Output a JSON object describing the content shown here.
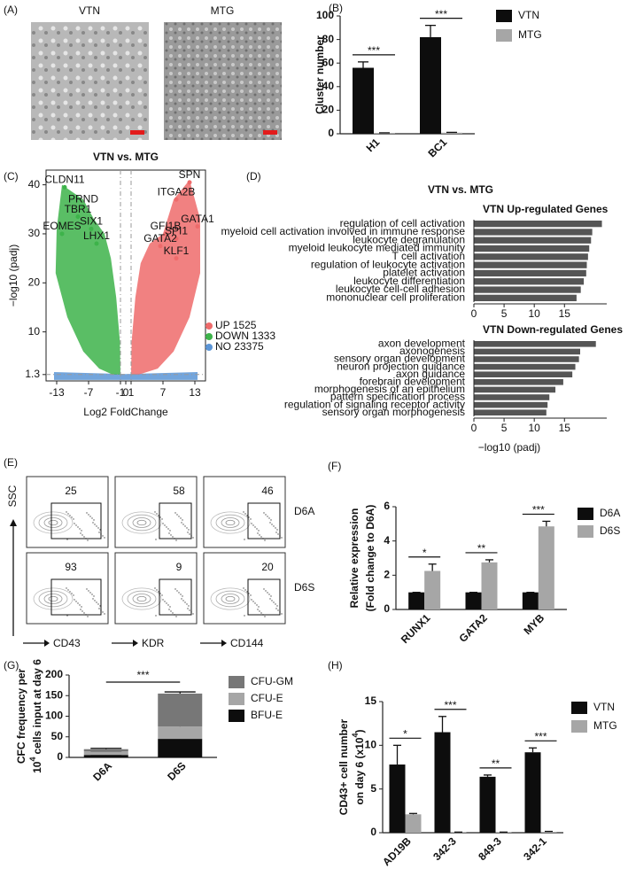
{
  "chart_data": [
    {
      "type": "image",
      "panel": "(A)",
      "labels": [
        "VTN",
        "MTG"
      ]
    },
    {
      "type": "bar",
      "panel": "(B)",
      "ylabel": {
        "line1": "Cluster number"
      },
      "categories": [
        "H1",
        "BC1"
      ],
      "series": [
        {
          "name": "VTN",
          "color": "#0d0d0d",
          "values": [
            56,
            82
          ],
          "errors": [
            5,
            10
          ]
        },
        {
          "name": "MTG",
          "color": "#a6a6a6",
          "values": [
            0.6,
            0.9
          ],
          "errors": [
            0.2,
            0.3
          ]
        }
      ],
      "significance": [
        "***",
        "***"
      ],
      "ylim": [
        0,
        100
      ],
      "yticks": [
        0,
        20,
        40,
        60,
        80,
        100
      ]
    },
    {
      "type": "scatter",
      "panel": "(C)",
      "title": "VTN vs. MTG",
      "xlabel": "Log2 FoldChange",
      "ylabel": "−log10 (padj)",
      "legend": [
        {
          "name": "UP 1525",
          "color": "#ee6b6b"
        },
        {
          "name": "DOWN 1333",
          "color": "#3db34a"
        },
        {
          "name": "NO 23375",
          "color": "#5b95d6"
        }
      ],
      "points": {
        "labels": [
          "CLDN11",
          "PRND",
          "TBR1",
          "SIX1",
          "EOMES",
          "LHX1",
          "SPN",
          "ITGA2B",
          "GATA1",
          "GFI1B",
          "SPI1",
          "GATA2",
          "KLF1"
        ],
        "x": [
          -11.5,
          -8,
          -9,
          -6.5,
          -12,
          -5.5,
          12,
          9.5,
          13.5,
          7.5,
          9.5,
          6.5,
          9.5
        ],
        "y": [
          39.5,
          35.5,
          33.5,
          31,
          30,
          28,
          40.5,
          37,
          31.5,
          30,
          29,
          27.5,
          25
        ],
        "colors": [
          "#3db34a",
          "#3db34a",
          "#3db34a",
          "#3db34a",
          "#3db34a",
          "#3db34a",
          "#ee6b6b",
          "#ee6b6b",
          "#ee6b6b",
          "#ee6b6b",
          "#ee6b6b",
          "#ee6b6b",
          "#ee6b6b"
        ]
      },
      "xlim": [
        -15,
        15
      ],
      "ylim": [
        0,
        43
      ],
      "xticks": [
        -13,
        -7,
        -1,
        0,
        1,
        7,
        13
      ],
      "yticks": [
        1.3,
        10,
        20,
        30,
        40
      ]
    },
    {
      "type": "hbar",
      "panel": "(D)",
      "title": "VTN vs. MTG",
      "subtitle": "VTN Up-regulated Genes",
      "label_color": "#e8413c",
      "color": "#555555",
      "categories": [
        "regulation of cell activation",
        "myeloid cell activation involved in immune response",
        "leukocyte degranulation",
        "myeloid leukocyte mediated immunity",
        "T cell activation",
        "regulation of leukocyte activation",
        "platelet activation",
        "leukocyte differentiation",
        "leukocyte cell-cell adhesion",
        "mononuclear cell proliferation"
      ],
      "values": [
        21.2,
        19.6,
        19.4,
        19.1,
        18.9,
        18.7,
        18.6,
        18.2,
        17.7,
        17.0
      ],
      "xlim": [
        0,
        22
      ],
      "xticks": [
        0,
        5,
        10,
        15
      ]
    },
    {
      "type": "hbar",
      "subtitle": "VTN Down-regulated Genes",
      "label_color": "#3fae49",
      "color": "#555555",
      "xlabel": "−log10 (padj)",
      "categories": [
        "axon development",
        "axonogenesis",
        "sensory organ development",
        "neuron projection guidance",
        "axon guidance",
        "forebrain development",
        "morphogenesis of an epithelium",
        "pattern specification process",
        "regulation of signaling receptor activity",
        "sensory organ morphogenesis"
      ],
      "values": [
        20.2,
        17.6,
        17.4,
        16.8,
        16.3,
        14.8,
        13.5,
        12.5,
        12.2,
        12.0
      ],
      "xlim": [
        0,
        22
      ],
      "xticks": [
        0,
        5,
        10,
        15
      ]
    },
    {
      "type": "flow",
      "panel": "(E)",
      "ylabel": "SSC",
      "xlabels": [
        "CD43",
        "KDR",
        "CD144"
      ],
      "rows": [
        "D6A",
        "D6S"
      ],
      "gates": [
        [
          25,
          58,
          46
        ],
        [
          93,
          9,
          20
        ]
      ]
    },
    {
      "type": "bar",
      "panel": "(F)",
      "ylabel": {
        "line1": "Relative expression",
        "base": "(Fold change to D6A)"
      },
      "categories": [
        "RUNX1",
        "GATA2",
        "MYB"
      ],
      "series": [
        {
          "name": "D6A",
          "color": "#0d0d0d",
          "values": [
            1,
            1,
            1
          ],
          "errors": [
            0,
            0,
            0
          ]
        },
        {
          "name": "D6S",
          "color": "#a6a6a6",
          "values": [
            2.25,
            2.75,
            4.85
          ],
          "errors": [
            0.4,
            0.15,
            0.3
          ]
        }
      ],
      "significance": [
        "*",
        "**",
        "***"
      ],
      "ylim": [
        0,
        6
      ],
      "yticks": [
        0,
        2,
        4,
        6
      ]
    },
    {
      "type": "stacked",
      "panel": "(G)",
      "ylabel": {
        "line1": "CFC frequency per",
        "base": "10",
        "exp": "4",
        "rest": "cells input at day 6"
      },
      "categories": [
        "D6A",
        "D6S"
      ],
      "series": [
        {
          "name": "BFU-E",
          "color": "#0d0d0d",
          "values": [
            6,
            45
          ],
          "errors": [
            1,
            5
          ]
        },
        {
          "name": "CFU-E",
          "color": "#a6a6a6",
          "values": [
            9,
            30
          ],
          "errors": [
            1,
            5
          ]
        },
        {
          "name": "CFU-GM",
          "color": "#777777",
          "values": [
            5,
            80
          ],
          "errors": [
            2,
            4
          ]
        }
      ],
      "comparison": "***",
      "ylim": [
        0,
        200
      ],
      "yticks": [
        0,
        50,
        100,
        150,
        200
      ]
    },
    {
      "type": "bar",
      "panel": "(H)",
      "ylabel": {
        "line1": "CD43+ cell number",
        "base": "on day 6 (x10",
        "exp": "4",
        "rest": ")"
      },
      "categories": [
        "AD19B",
        "342-3",
        "849-3",
        "342-1"
      ],
      "series": [
        {
          "name": "VTN",
          "color": "#0d0d0d",
          "values": [
            7.8,
            11.5,
            6.4,
            9.2
          ],
          "errors": [
            2.2,
            1.8,
            0.2,
            0.5
          ]
        },
        {
          "name": "MTG",
          "color": "#a6a6a6",
          "values": [
            2.1,
            0.05,
            0.05,
            0.1
          ],
          "errors": [
            0.1,
            0.02,
            0.02,
            0.05
          ]
        }
      ],
      "significance": [
        "*",
        "***",
        "**",
        "***"
      ],
      "ylim": [
        0,
        15
      ],
      "yticks": [
        0,
        5,
        10,
        15
      ]
    }
  ]
}
